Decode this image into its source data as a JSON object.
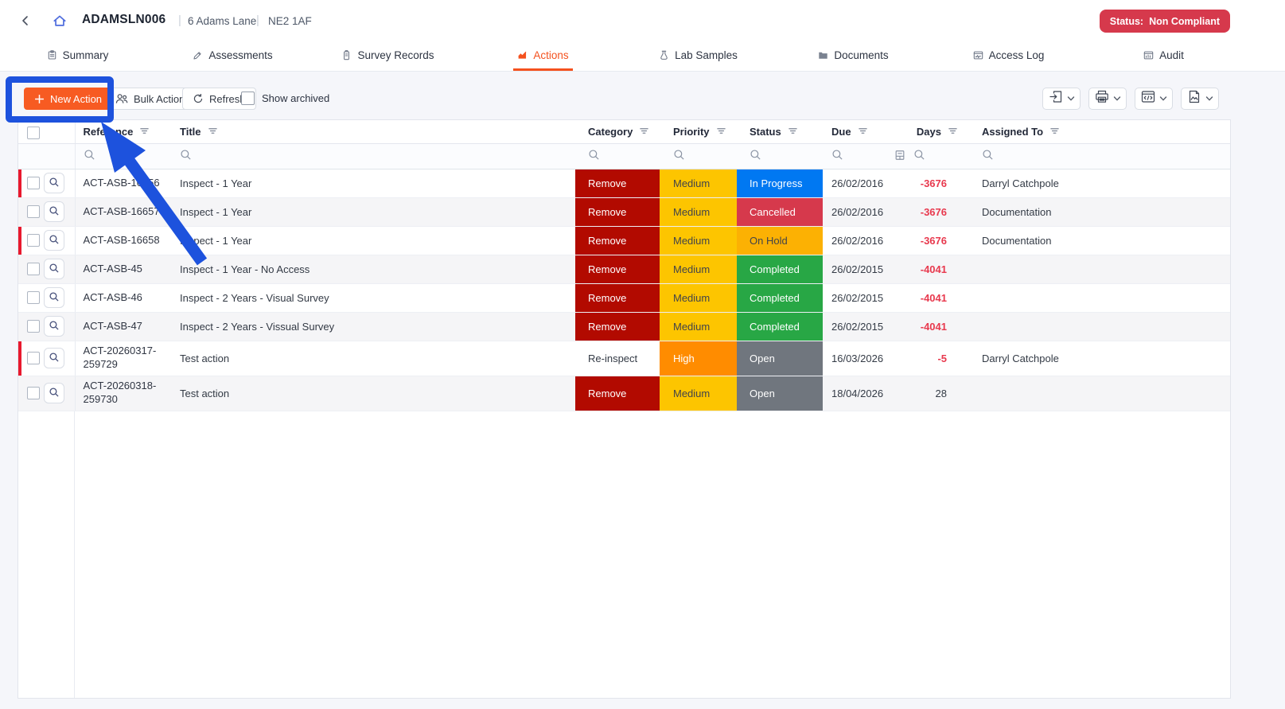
{
  "header": {
    "site_code": "ADAMSLN006",
    "address": "6 Adams Lane",
    "postcode": "NE2 1AF",
    "divider": "|",
    "status_label": "Status:",
    "status_value": "Non Compliant",
    "back_icon": "chevron-left-icon",
    "home_icon": "home-icon"
  },
  "tabs": [
    {
      "label": "Summary",
      "icon": "summary-icon",
      "active": false
    },
    {
      "label": "Assessments",
      "icon": "assessments-icon",
      "active": false
    },
    {
      "label": "Survey Records",
      "icon": "survey-records-icon",
      "active": false
    },
    {
      "label": "Actions",
      "icon": "actions-icon",
      "active": true
    },
    {
      "label": "Lab Samples",
      "icon": "lab-samples-icon",
      "active": false
    },
    {
      "label": "Documents",
      "icon": "documents-icon",
      "active": false
    },
    {
      "label": "Access Log",
      "icon": "access-log-icon",
      "active": false
    },
    {
      "label": "Audit",
      "icon": "audit-icon",
      "active": false
    }
  ],
  "toolbar": {
    "new_action_label": "New Action",
    "new_action_icon": "plus-icon",
    "bulk_action_label": "Bulk Action",
    "bulk_action_icon": "people-icon",
    "refresh_label": "Refresh",
    "refresh_icon": "refresh-icon",
    "show_archived_label": "Show archived",
    "show_archived_checked": false,
    "export_buttons": [
      {
        "name": "export-data-dropdown-button",
        "icon": "export-icon"
      },
      {
        "name": "print-dropdown-button",
        "icon": "printer-icon"
      },
      {
        "name": "embed-code-dropdown-button",
        "icon": "code-icon"
      },
      {
        "name": "export-image-dropdown-button",
        "icon": "image-file-icon"
      }
    ]
  },
  "table": {
    "columns": [
      {
        "key": "reference",
        "label": "Reference"
      },
      {
        "key": "title",
        "label": "Title"
      },
      {
        "key": "category",
        "label": "Category"
      },
      {
        "key": "priority",
        "label": "Priority"
      },
      {
        "key": "status",
        "label": "Status"
      },
      {
        "key": "due",
        "label": "Due"
      },
      {
        "key": "days",
        "label": "Days"
      },
      {
        "key": "assigned_to",
        "label": "Assigned To"
      }
    ],
    "rows": [
      {
        "flagged": true,
        "checked": false,
        "reference": "ACT-ASB-16656",
        "title": "Inspect - 1 Year",
        "category": "Remove",
        "priority": "Medium",
        "status": "In Progress",
        "due": "26/02/2016",
        "days": "-3676",
        "assigned_to": "Darryl Catchpole"
      },
      {
        "flagged": false,
        "checked": false,
        "reference": "ACT-ASB-16657",
        "title": "Inspect - 1 Year",
        "category": "Remove",
        "priority": "Medium",
        "status": "Cancelled",
        "due": "26/02/2016",
        "days": "-3676",
        "assigned_to": "Documentation"
      },
      {
        "flagged": true,
        "checked": false,
        "reference": "ACT-ASB-16658",
        "title": "Inspect - 1 Year",
        "category": "Remove",
        "priority": "Medium",
        "status": "On Hold",
        "due": "26/02/2016",
        "days": "-3676",
        "assigned_to": "Documentation"
      },
      {
        "flagged": false,
        "checked": false,
        "reference": "ACT-ASB-45",
        "title": "Inspect - 1 Year - No Access",
        "category": "Remove",
        "priority": "Medium",
        "status": "Completed",
        "due": "26/02/2015",
        "days": "-4041",
        "assigned_to": ""
      },
      {
        "flagged": false,
        "checked": false,
        "reference": "ACT-ASB-46",
        "title": "Inspect - 2 Years - Visual Survey",
        "category": "Remove",
        "priority": "Medium",
        "status": "Completed",
        "due": "26/02/2015",
        "days": "-4041",
        "assigned_to": ""
      },
      {
        "flagged": false,
        "checked": false,
        "reference": "ACT-ASB-47",
        "title": "Inspect - 2 Years - Vissual Survey",
        "category": "Remove",
        "priority": "Medium",
        "status": "Completed",
        "due": "26/02/2015",
        "days": "-4041",
        "assigned_to": ""
      },
      {
        "flagged": true,
        "checked": false,
        "reference": "ACT-20260317-259729",
        "title": "Test action",
        "category": "Re-inspect",
        "priority": "High",
        "status": "Open",
        "due": "16/03/2026",
        "days": "-5",
        "assigned_to": "Darryl Catchpole"
      },
      {
        "flagged": false,
        "checked": false,
        "reference": "ACT-20260318-259730",
        "title": "Test action",
        "category": "Remove",
        "priority": "Medium",
        "status": "Open",
        "due": "18/04/2026",
        "days": "28",
        "assigned_to": ""
      }
    ]
  },
  "annotation": {
    "type": "highlight-box-with-arrow",
    "target": "new-action-button",
    "color": "#1d52dd"
  },
  "colors": {
    "accent": "#f4511e",
    "button_orange": "#f75b22",
    "badge_red": "#d6394c",
    "row_flag_red": "#e8192e",
    "days_negative": "#e8394e",
    "category": {
      "Remove": {
        "bg": "#b20a00",
        "fg": "#ffffff"
      },
      "Re-inspect": {
        "bg": "",
        "fg": "#333a45"
      }
    },
    "priority": {
      "Medium": {
        "bg": "#fdc500",
        "fg": "#41434a"
      },
      "High": {
        "bg": "#ff8c00",
        "fg": "#ffffff"
      }
    },
    "status": {
      "In Progress": {
        "bg": "#0078f2",
        "fg": "#ffffff"
      },
      "Cancelled": {
        "bg": "#d6394c",
        "fg": "#ffffff"
      },
      "On Hold": {
        "bg": "#fcb103",
        "fg": "#41434a"
      },
      "Completed": {
        "bg": "#28a745",
        "fg": "#ffffff"
      },
      "Open": {
        "bg": "#70767e",
        "fg": "#ffffff"
      }
    }
  }
}
